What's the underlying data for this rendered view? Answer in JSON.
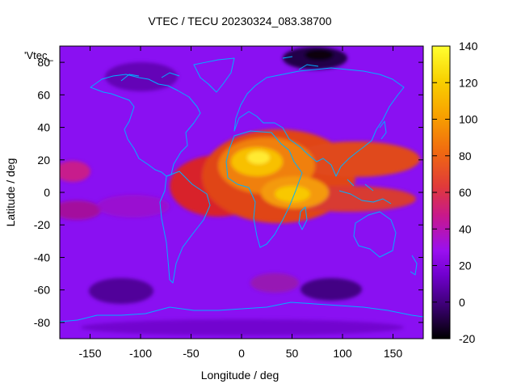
{
  "chart_data": {
    "type": "heatmap",
    "title": "VTEC / TECU 20230324_083.38700",
    "xlabel": "Longitude / deg",
    "ylabel": "Latitude / deg",
    "series_label": "'Vtec_",
    "xlim": [
      -180,
      180
    ],
    "ylim": [
      -90,
      90
    ],
    "x_ticks": [
      -150,
      -100,
      -50,
      0,
      50,
      100,
      150
    ],
    "y_ticks": [
      -80,
      -60,
      -40,
      -20,
      0,
      20,
      40,
      60,
      80
    ],
    "colorbar": {
      "min": -20,
      "max": 140,
      "ticks": [
        -20,
        0,
        20,
        40,
        60,
        80,
        100,
        120,
        140
      ],
      "palette": [
        "#000000",
        "#3a0070",
        "#7200d0",
        "#9a10f0",
        "#c8188c",
        "#e03a3a",
        "#f06a10",
        "#f8a000",
        "#f8d000",
        "#ffff30"
      ]
    },
    "regions": [
      {
        "name": "global background",
        "value": 20
      },
      {
        "name": "equatorial anomaly Africa / Indian Ocean, 30°N to 15°S",
        "value": 95,
        "lon": 30,
        "lat": 8
      },
      {
        "name": "northern crest peak over Sahara",
        "value": 125,
        "lon": 15,
        "lat": 20
      },
      {
        "name": "southern crest peak near 40°E",
        "value": 125,
        "lon": 45,
        "lat": -5
      },
      {
        "name": "Atlantic equatorial band",
        "value": 65,
        "lon": -20,
        "lat": 5
      },
      {
        "name": "Asia / Western Pacific northern band",
        "value": 70,
        "lon": 130,
        "lat": 18
      },
      {
        "name": "Eastern Pacific band near 10°N",
        "value": 55,
        "lon": -170,
        "lat": 10
      },
      {
        "name": "Eastern Pacific band near 12°S",
        "value": 45,
        "lon": -170,
        "lat": -12
      },
      {
        "name": "Arctic minimum over Siberia",
        "value": -5,
        "lon": 80,
        "lat": 85
      },
      {
        "name": "Southern Indian Ocean minimum",
        "value": 5,
        "lon": 85,
        "lat": -62
      },
      {
        "name": "Southern Pacific minimum",
        "value": 8,
        "lon": -120,
        "lat": -62
      }
    ]
  }
}
